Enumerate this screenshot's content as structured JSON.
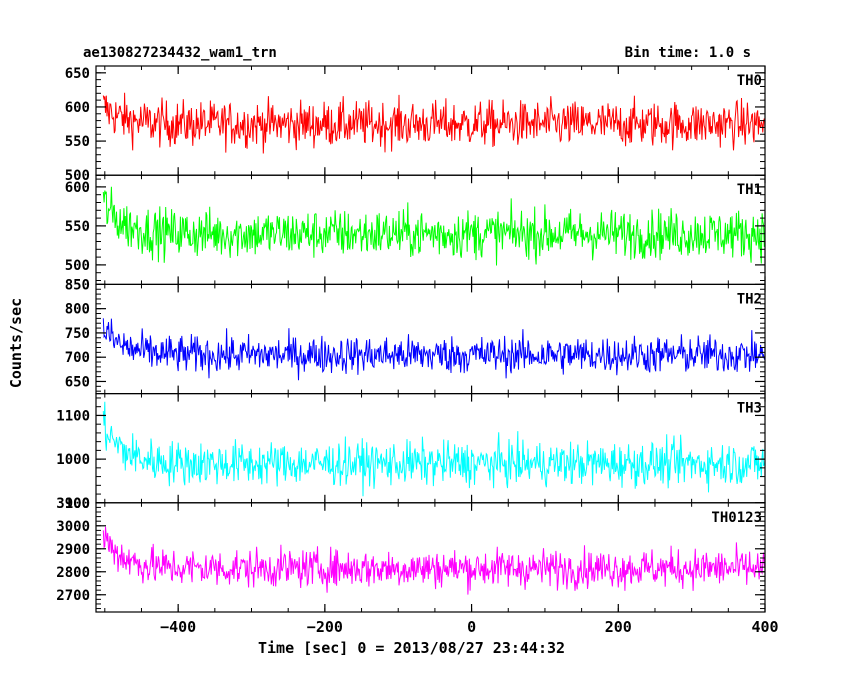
{
  "header": {
    "title": "ae130827234432_wam1_trn",
    "bin_time": "Bin time: 1.0 s"
  },
  "chart_data": {
    "type": "line",
    "title": "ae130827234432_wam1_trn",
    "subtitle": "Bin time: 1.0 s",
    "xlabel": "Time [sec] 0 = 2013/08/27 23:44:32",
    "ylabel": "Counts/sec",
    "xlim": [
      -512,
      400
    ],
    "xticks": [
      -400,
      -200,
      0,
      200,
      400
    ],
    "grid": false,
    "panels": [
      {
        "name": "TH0",
        "color": "#ff0000",
        "ylim": [
          500,
          660
        ],
        "yticks": [
          500,
          550,
          600,
          650
        ],
        "mean": 575,
        "spread": 30,
        "start_value": 600
      },
      {
        "name": "TH1",
        "color": "#00ff00",
        "ylim": [
          475,
          615
        ],
        "yticks": [
          500,
          550,
          600
        ],
        "mean": 540,
        "spread": 28,
        "start_value": 580
      },
      {
        "name": "TH2",
        "color": "#0000ff",
        "ylim": [
          625,
          850
        ],
        "yticks": [
          650,
          700,
          750,
          800,
          850
        ],
        "mean": 705,
        "spread": 35,
        "start_value": 760
      },
      {
        "name": "TH3",
        "color": "#00ffff",
        "ylim": [
          900,
          1150
        ],
        "yticks": [
          900,
          1000,
          1100
        ],
        "mean": 990,
        "spread": 45,
        "start_value": 1080
      },
      {
        "name": "TH0123",
        "color": "#ff00ff",
        "ylim": [
          2625,
          3100
        ],
        "yticks": [
          2700,
          2800,
          2900,
          3000,
          3100
        ],
        "mean": 2815,
        "spread": 75,
        "start_value": 2960
      }
    ]
  }
}
